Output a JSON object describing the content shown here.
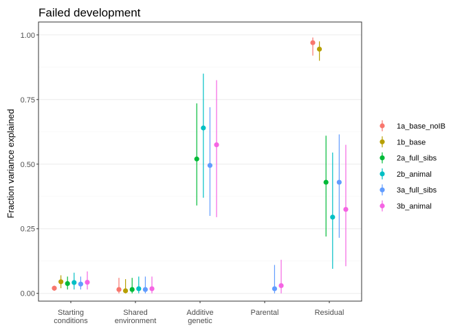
{
  "chart_data": {
    "type": "scatter",
    "title": "Failed development",
    "xlabel": "",
    "ylabel": "Fraction variance explained",
    "ylim": [
      -0.03,
      1.05
    ],
    "yticks": [
      "0.00",
      "0.25",
      "0.50",
      "0.75",
      "1.00"
    ],
    "ytick_values": [
      0,
      0.25,
      0.5,
      0.75,
      1.0
    ],
    "categories": [
      [
        "Starting",
        "conditions"
      ],
      [
        "Shared",
        "environment"
      ],
      [
        "Additive",
        "genetic"
      ],
      [
        "Parental"
      ],
      [
        "Residual"
      ]
    ],
    "grid": "horizontal",
    "legend_position": "right",
    "series": [
      {
        "name": "1a_base_noIB",
        "color": "#F8766D",
        "points": [
          {
            "category": 0,
            "y": 0.02,
            "lo": 0.01,
            "hi": 0.03
          },
          {
            "category": 1,
            "y": 0.015,
            "lo": 0.0,
            "hi": 0.06
          },
          {
            "category": 4,
            "y": 0.97,
            "lo": 0.92,
            "hi": 0.99
          }
        ]
      },
      {
        "name": "1b_base",
        "color": "#B79F00",
        "points": [
          {
            "category": 0,
            "y": 0.045,
            "lo": 0.02,
            "hi": 0.07
          },
          {
            "category": 1,
            "y": 0.01,
            "lo": 0.0,
            "hi": 0.055
          },
          {
            "category": 4,
            "y": 0.945,
            "lo": 0.9,
            "hi": 0.975
          }
        ]
      },
      {
        "name": "2a_full_sibs",
        "color": "#00BA38",
        "points": [
          {
            "category": 0,
            "y": 0.038,
            "lo": 0.015,
            "hi": 0.065
          },
          {
            "category": 1,
            "y": 0.015,
            "lo": 0.0,
            "hi": 0.06
          },
          {
            "category": 2,
            "y": 0.52,
            "lo": 0.34,
            "hi": 0.735
          },
          {
            "category": 4,
            "y": 0.43,
            "lo": 0.22,
            "hi": 0.61
          }
        ]
      },
      {
        "name": "2b_animal",
        "color": "#00BFC4",
        "points": [
          {
            "category": 0,
            "y": 0.042,
            "lo": 0.015,
            "hi": 0.08
          },
          {
            "category": 1,
            "y": 0.018,
            "lo": 0.0,
            "hi": 0.065
          },
          {
            "category": 2,
            "y": 0.64,
            "lo": 0.37,
            "hi": 0.85
          },
          {
            "category": 4,
            "y": 0.295,
            "lo": 0.095,
            "hi": 0.545
          }
        ]
      },
      {
        "name": "3a_full_sibs",
        "color": "#619CFF",
        "points": [
          {
            "category": 0,
            "y": 0.036,
            "lo": 0.015,
            "hi": 0.065
          },
          {
            "category": 1,
            "y": 0.015,
            "lo": 0.0,
            "hi": 0.065
          },
          {
            "category": 2,
            "y": 0.495,
            "lo": 0.3,
            "hi": 0.72
          },
          {
            "category": 3,
            "y": 0.018,
            "lo": 0.0,
            "hi": 0.11
          },
          {
            "category": 4,
            "y": 0.43,
            "lo": 0.215,
            "hi": 0.615
          }
        ]
      },
      {
        "name": "3b_animal",
        "color": "#F564E3",
        "points": [
          {
            "category": 0,
            "y": 0.043,
            "lo": 0.015,
            "hi": 0.085
          },
          {
            "category": 1,
            "y": 0.018,
            "lo": 0.0,
            "hi": 0.065
          },
          {
            "category": 2,
            "y": 0.575,
            "lo": 0.295,
            "hi": 0.825
          },
          {
            "category": 3,
            "y": 0.03,
            "lo": 0.0,
            "hi": 0.13
          },
          {
            "category": 4,
            "y": 0.325,
            "lo": 0.105,
            "hi": 0.575
          }
        ]
      }
    ]
  }
}
